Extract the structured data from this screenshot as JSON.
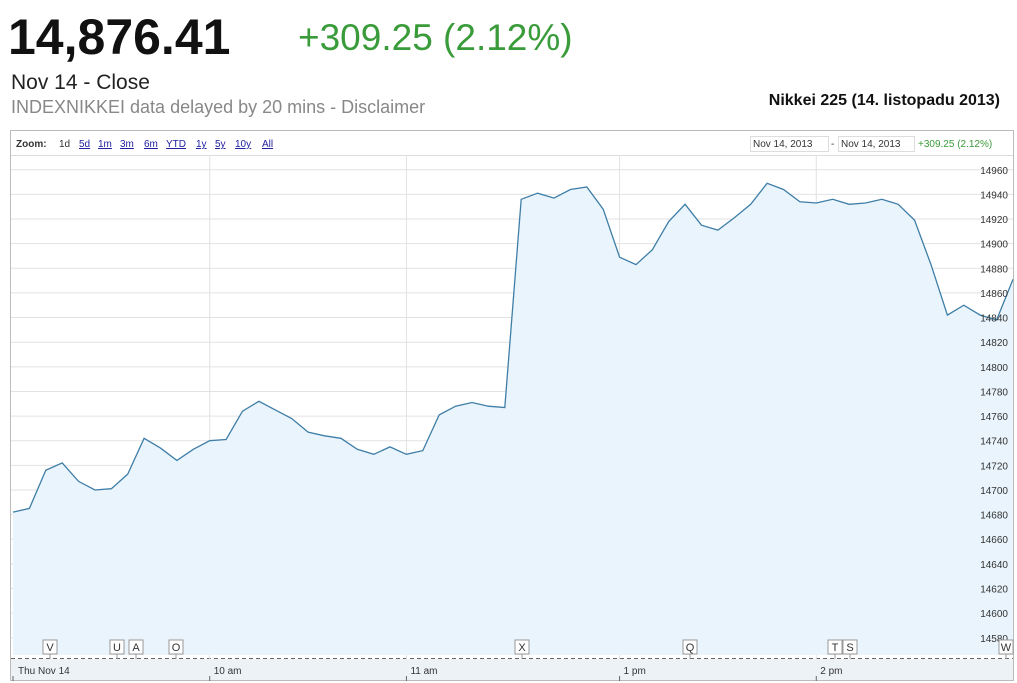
{
  "header": {
    "price": "14,876.41",
    "change": "+309.25 (2.12%)",
    "status": "Nov 14 - Close",
    "source_note": "INDEXNIKKEI data delayed by 20 mins - Disclaimer",
    "chart_caption": "Nikkei 225 (14. listopadu 2013)"
  },
  "toolbar": {
    "zoom_label": "Zoom:",
    "zoom_options": [
      "1d",
      "5d",
      "1m",
      "3m",
      "6m",
      "YTD",
      "1y",
      "5y",
      "10y",
      "All"
    ],
    "range_start": "Nov 14, 2013",
    "range_separator": "-",
    "range_end": "Nov 14, 2013",
    "range_change": "+309.25 (2.12%)"
  },
  "chart_data": {
    "type": "line",
    "color": "#3f7ea6",
    "fill": "#e9f4fc",
    "grid": true,
    "categories": [
      "Thu Nov 14",
      null,
      null,
      null,
      null,
      null,
      null,
      null,
      null,
      null,
      null,
      null,
      "10 am",
      null,
      null,
      null,
      null,
      null,
      null,
      null,
      null,
      null,
      null,
      null,
      "11 am",
      null,
      null,
      null,
      null,
      null,
      null,
      null,
      null,
      null,
      null,
      null,
      null,
      "1 pm",
      null,
      null,
      null,
      null,
      null,
      null,
      null,
      null,
      null,
      null,
      null,
      "2 pm",
      null,
      null,
      null,
      null,
      null,
      null,
      null,
      null,
      null,
      null,
      null,
      null
    ],
    "values": [
      14682,
      14685,
      14716,
      14722,
      14707,
      14700,
      14701,
      14713,
      14742,
      14734,
      14724,
      14733,
      14740,
      14741,
      14764,
      14772,
      14765,
      14758,
      14747,
      14744,
      14742,
      14733,
      14729,
      14735,
      14729,
      14732,
      14761,
      14768,
      14771,
      14768,
      14767,
      14936,
      14941,
      14937,
      14944,
      14946,
      14928,
      14889,
      14883,
      14895,
      14918,
      14932,
      14915,
      14911,
      14921,
      14932,
      14949,
      14944,
      14934,
      14933,
      14936,
      14932,
      14933,
      14936,
      14932,
      14919,
      14883,
      14842,
      14850,
      14842,
      14838,
      14871
    ],
    "ylim": [
      14566,
      14972
    ],
    "yticks": [
      14580,
      14600,
      14620,
      14640,
      14660,
      14680,
      14700,
      14720,
      14740,
      14760,
      14780,
      14800,
      14820,
      14840,
      14860,
      14880,
      14900,
      14920,
      14940,
      14960
    ],
    "events": [
      "V",
      "U",
      "A",
      "O",
      "X",
      "Q",
      "T",
      "S",
      "W"
    ]
  }
}
